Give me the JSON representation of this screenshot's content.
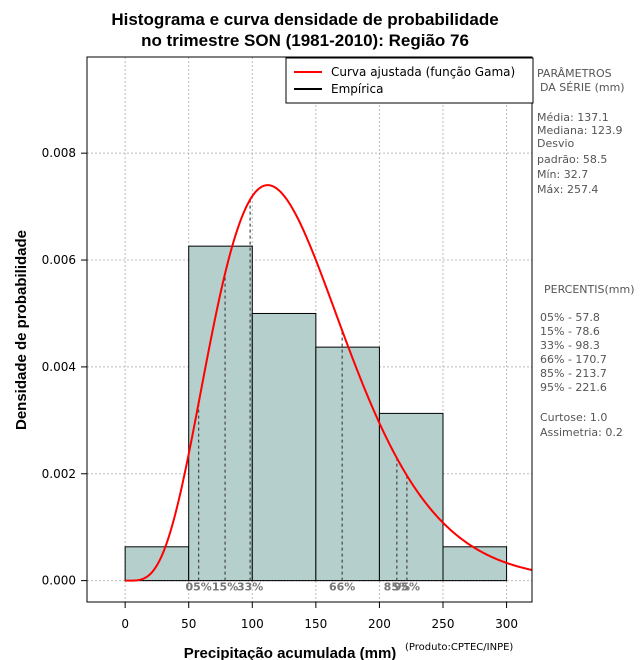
{
  "chart_data": {
    "type": "bar",
    "title_line1": "Histograma e curva densidade de probabilidade",
    "title_line2": "no trimestre SON (1981-2010): Região 76",
    "xlabel": "Precipitação acumulada (mm)",
    "ylabel": "Densidade de probabilidade",
    "credit": "(Produto:CPTEC/INPE)",
    "xlim": [
      -30,
      320
    ],
    "ylim": [
      -0.0004,
      0.0098
    ],
    "x_ticks": [
      0,
      50,
      100,
      150,
      200,
      250,
      300
    ],
    "x_tick_labels": [
      "0",
      "50",
      "100",
      "150",
      "200",
      "250",
      "300"
    ],
    "y_ticks": [
      0.0,
      0.002,
      0.004,
      0.006,
      0.008
    ],
    "y_tick_labels": [
      "0.000",
      "0.002",
      "0.004",
      "0.006",
      "0.008"
    ],
    "bins": [
      {
        "from": 0,
        "to": 50,
        "density": 0.000633
      },
      {
        "from": 50,
        "to": 100,
        "density": 0.00626
      },
      {
        "from": 100,
        "to": 150,
        "density": 0.005
      },
      {
        "from": 150,
        "to": 200,
        "density": 0.00437
      },
      {
        "from": 200,
        "to": 250,
        "density": 0.00313
      },
      {
        "from": 250,
        "to": 300,
        "density": 0.000633
      }
    ],
    "gamma_fit": {
      "mean": 137.1,
      "sd": 58.5,
      "x_start": 0,
      "x_end": 320
    },
    "percentile_markers": [
      {
        "label": "05%",
        "value": 57.8
      },
      {
        "label": "15%",
        "value": 78.6
      },
      {
        "label": "33%",
        "value": 98.3
      },
      {
        "label": "66%",
        "value": 170.7
      },
      {
        "label": "85%",
        "value": 213.7
      },
      {
        "label": "95%",
        "value": 221.6
      }
    ],
    "legend": {
      "position": "top-right",
      "items": [
        {
          "label": "Curva ajustada (função Gama)",
          "color": "#ff0000"
        },
        {
          "label": "Empírica",
          "color": "#000000"
        }
      ]
    },
    "colors": {
      "bar_fill": "#b5cfcd",
      "curve": "#ff0000",
      "grid": "#bbbbbb"
    }
  },
  "side_panel": {
    "params_title_1": "PARÂMETROS",
    "params_title_2": "DA SÉRIE (mm)",
    "stats": [
      "Média:  137.1",
      "Mediana:  123.9",
      "Desvio",
      "padrão:  58.5",
      "Mín:  32.7",
      "Máx:  257.4"
    ],
    "percentis_title": "PERCENTIS(mm)",
    "percentis": [
      "05% -  57.8",
      "15% -  78.6",
      "33% -  98.3",
      "66% -  170.7",
      "85% -  213.7",
      "95% -  221.6"
    ],
    "shape": [
      "Curtose:  1.0",
      "Assimetria:  0.2"
    ]
  }
}
